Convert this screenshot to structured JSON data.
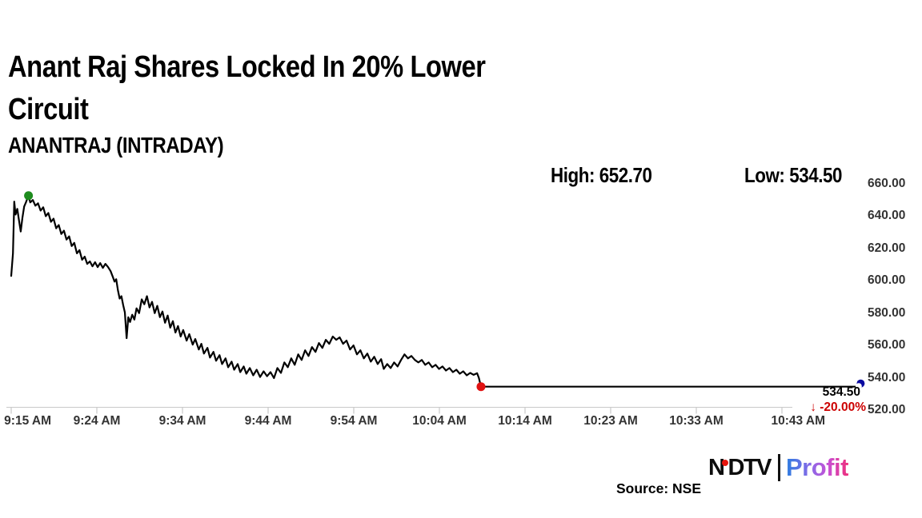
{
  "page": {
    "title_line1": "Anant Raj Shares Locked In 20% Lower",
    "title_line2": "Circuit",
    "subtitle": "ANANTRAJ (INTRADAY)",
    "high_label": "High: 652.70",
    "low_label": "Low: 534.50"
  },
  "annotations": {
    "last_price": "534.50",
    "change": "↓ -20.00%",
    "change_color": "#cc0000"
  },
  "footer": {
    "source": "Source: NSE",
    "brand": {
      "ndtv_n": "N",
      "ndtv_rest": "DTV",
      "dot_color": "#e8150d",
      "profit": "Profit",
      "profit_gradient": [
        "#2b7ce0",
        "#8a6ae8",
        "#c94fd4",
        "#ee2f7b"
      ]
    }
  },
  "chart_data": {
    "type": "line",
    "symbol": "ANANTRAJ",
    "session": "INTRADAY",
    "title": "ANANTRAJ (INTRADAY)",
    "high": 652.7,
    "low": 534.5,
    "last": 534.5,
    "change_pct": -20.0,
    "line_color": "#000000",
    "grid": "off",
    "axis_color": "#c9c9c9",
    "x_axis": {
      "unit": "minutes after 9:15 AM",
      "range": [
        0,
        98
      ],
      "ticks": [
        {
          "m": 0,
          "label": "9:15 AM"
        },
        {
          "m": 9,
          "label": "9:24 AM"
        },
        {
          "m": 19,
          "label": "9:34 AM"
        },
        {
          "m": 29,
          "label": "9:44 AM"
        },
        {
          "m": 39,
          "label": "9:54 AM"
        },
        {
          "m": 49,
          "label": "10:04 AM"
        },
        {
          "m": 59,
          "label": "10:14 AM"
        },
        {
          "m": 68,
          "label": "10:23 AM"
        },
        {
          "m": 78,
          "label": "10:33 AM"
        },
        {
          "m": 88,
          "label": "10:43 AM"
        }
      ]
    },
    "y_axis": {
      "range": [
        515,
        665
      ],
      "ticks": [
        {
          "v": 660,
          "label": "660.00"
        },
        {
          "v": 640,
          "label": "640.00"
        },
        {
          "v": 620,
          "label": "620.00"
        },
        {
          "v": 600,
          "label": "600.00"
        },
        {
          "v": 580,
          "label": "580.00"
        },
        {
          "v": 560,
          "label": "560.00"
        },
        {
          "v": 540,
          "label": "540.00"
        },
        {
          "v": 520,
          "label": "520.00"
        }
      ]
    },
    "markers": [
      {
        "kind": "session-high",
        "m": 2.0,
        "price": 652.7,
        "color": "#1e8c1e"
      },
      {
        "kind": "lower-circuit",
        "m": 54.35,
        "price": 534.5,
        "color": "#e01212"
      },
      {
        "kind": "last",
        "m": 98,
        "price": 534.5,
        "color": "#0a0aa0"
      }
    ],
    "series": [
      {
        "name": "ANANTRAJ price",
        "points": [
          [
            0,
            603
          ],
          [
            0.2,
            617
          ],
          [
            0.35,
            649
          ],
          [
            0.5,
            641
          ],
          [
            0.7,
            644.5
          ],
          [
            0.9,
            637.5
          ],
          [
            1.1,
            630.5
          ],
          [
            1.3,
            639
          ],
          [
            1.5,
            646
          ],
          [
            1.7,
            648.5
          ],
          [
            1.9,
            651.5
          ],
          [
            2,
            652.7
          ],
          [
            2.2,
            648.5
          ],
          [
            2.5,
            650
          ],
          [
            2.8,
            646.5
          ],
          [
            3.1,
            648
          ],
          [
            3.4,
            643.5
          ],
          [
            3.7,
            645.5
          ],
          [
            4,
            640
          ],
          [
            4.3,
            642
          ],
          [
            4.6,
            636.5
          ],
          [
            4.9,
            638.5
          ],
          [
            5.2,
            632.5
          ],
          [
            5.5,
            634.5
          ],
          [
            5.8,
            629
          ],
          [
            6.1,
            631
          ],
          [
            6.4,
            625.5
          ],
          [
            6.7,
            627.5
          ],
          [
            7,
            621.5
          ],
          [
            7.3,
            623.5
          ],
          [
            7.6,
            617
          ],
          [
            7.9,
            619
          ],
          [
            8.2,
            613
          ],
          [
            8.5,
            615
          ],
          [
            8.8,
            610.5
          ],
          [
            9.1,
            612
          ],
          [
            9.4,
            609
          ],
          [
            9.7,
            611.5
          ],
          [
            10,
            608.5
          ],
          [
            10.3,
            611
          ],
          [
            10.6,
            608
          ],
          [
            10.9,
            610.5
          ],
          [
            11.2,
            608.5
          ],
          [
            11.5,
            606
          ],
          [
            11.75,
            602.5
          ],
          [
            11.95,
            599.5
          ],
          [
            12.15,
            601
          ],
          [
            12.35,
            594
          ],
          [
            12.55,
            589
          ],
          [
            12.75,
            590.5
          ],
          [
            12.95,
            585
          ],
          [
            13.15,
            580.5
          ],
          [
            13.35,
            564.5
          ],
          [
            13.55,
            577.5
          ],
          [
            13.75,
            574.5
          ],
          [
            14,
            579
          ],
          [
            14.25,
            576
          ],
          [
            14.5,
            583
          ],
          [
            14.8,
            580
          ],
          [
            15.1,
            588.5
          ],
          [
            15.4,
            585.5
          ],
          [
            15.7,
            590.5
          ],
          [
            16,
            583.5
          ],
          [
            16.3,
            587
          ],
          [
            16.6,
            580
          ],
          [
            16.9,
            584.5
          ],
          [
            17.2,
            577.5
          ],
          [
            17.5,
            581
          ],
          [
            17.8,
            574
          ],
          [
            18.1,
            578.5
          ],
          [
            18.4,
            571
          ],
          [
            18.7,
            575
          ],
          [
            19,
            568
          ],
          [
            19.3,
            572
          ],
          [
            19.6,
            565.5
          ],
          [
            19.9,
            569.5
          ],
          [
            20.3,
            563
          ],
          [
            20.6,
            567
          ],
          [
            21,
            560.5
          ],
          [
            21.3,
            564
          ],
          [
            21.7,
            557.5
          ],
          [
            22,
            561
          ],
          [
            22.3,
            555
          ],
          [
            22.7,
            558.5
          ],
          [
            23,
            552.5
          ],
          [
            23.4,
            556
          ],
          [
            23.7,
            550.5
          ],
          [
            24.1,
            554
          ],
          [
            24.4,
            548.5
          ],
          [
            24.8,
            552
          ],
          [
            25.1,
            546.5
          ],
          [
            25.5,
            550
          ],
          [
            25.8,
            545
          ],
          [
            26.2,
            548.5
          ],
          [
            26.5,
            543.5
          ],
          [
            26.9,
            547
          ],
          [
            27.2,
            542.5
          ],
          [
            27.6,
            546
          ],
          [
            28,
            541.5
          ],
          [
            28.4,
            545
          ],
          [
            28.8,
            540.5
          ],
          [
            29.2,
            544
          ],
          [
            29.6,
            541
          ],
          [
            30,
            543.5
          ],
          [
            30.4,
            539.8
          ],
          [
            30.8,
            546
          ],
          [
            31.2,
            543
          ],
          [
            31.6,
            549.5
          ],
          [
            32,
            546.5
          ],
          [
            32.4,
            552
          ],
          [
            32.8,
            548
          ],
          [
            33.2,
            554.5
          ],
          [
            33.6,
            551
          ],
          [
            34,
            557
          ],
          [
            34.4,
            553.5
          ],
          [
            34.8,
            559
          ],
          [
            35.2,
            556
          ],
          [
            35.6,
            561.5
          ],
          [
            36,
            558.5
          ],
          [
            36.4,
            563.5
          ],
          [
            36.8,
            561
          ],
          [
            37.2,
            565.5
          ],
          [
            37.6,
            563.5
          ],
          [
            38,
            565
          ],
          [
            38.4,
            561
          ],
          [
            38.8,
            563
          ],
          [
            39.2,
            557.5
          ],
          [
            39.6,
            560
          ],
          [
            40,
            554.5
          ],
          [
            40.4,
            557
          ],
          [
            40.8,
            552
          ],
          [
            41.2,
            555
          ],
          [
            41.6,
            550
          ],
          [
            42,
            553
          ],
          [
            42.4,
            548.5
          ],
          [
            42.8,
            551.5
          ],
          [
            43.1,
            545.5
          ],
          [
            43.5,
            548.5
          ],
          [
            43.9,
            546
          ],
          [
            44.3,
            549.5
          ],
          [
            44.7,
            547
          ],
          [
            45.1,
            551
          ],
          [
            45.5,
            554.5
          ],
          [
            45.9,
            552
          ],
          [
            46.3,
            553.5
          ],
          [
            46.7,
            551
          ],
          [
            47.1,
            549.5
          ],
          [
            47.5,
            551
          ],
          [
            47.9,
            548
          ],
          [
            48.3,
            549.5
          ],
          [
            48.7,
            546.5
          ],
          [
            49.1,
            548
          ],
          [
            49.5,
            545.5
          ],
          [
            49.9,
            547
          ],
          [
            50.3,
            544.5
          ],
          [
            50.7,
            546
          ],
          [
            51.1,
            543.5
          ],
          [
            51.5,
            545
          ],
          [
            51.9,
            542.5
          ],
          [
            52.3,
            544
          ],
          [
            52.7,
            541.5
          ],
          [
            53.1,
            543
          ],
          [
            53.5,
            541.8
          ],
          [
            53.9,
            542.8
          ],
          [
            54.1,
            540
          ],
          [
            54.35,
            534.5
          ],
          [
            98,
            534.5
          ]
        ]
      }
    ]
  }
}
